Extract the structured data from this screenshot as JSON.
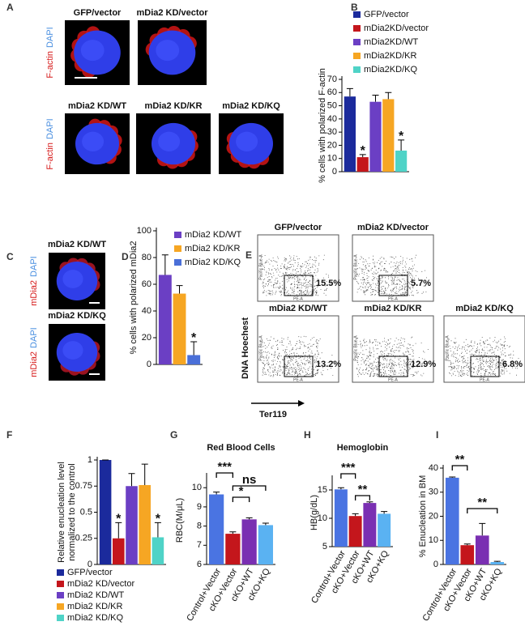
{
  "panel_labels": [
    "A",
    "B",
    "C",
    "D",
    "E",
    "F",
    "G",
    "H",
    "I"
  ],
  "figure_a": {
    "stain": [
      "F-actin",
      "DAPI"
    ],
    "cells": [
      "GFP/vector",
      "mDia2 KD/vector",
      "mDia2 KD/WT",
      "mDia2 KD/KR",
      "mDia2 KD/KQ"
    ]
  },
  "figure_c": {
    "stain": [
      "mDia2",
      "DAPI"
    ],
    "cells": [
      "mDia2 KD/WT",
      "mDia2 KD/KQ"
    ]
  },
  "figure_e": {
    "y_label": "DNA Hoechest",
    "x_label": "Ter119",
    "plot_x_axis": "PE-A",
    "plot_y_axis": "Pacific Blue-A",
    "plots": [
      {
        "label": "GFP/vector",
        "gate": "15.5%"
      },
      {
        "label": "mDia2 KD/vector",
        "gate": "5.7%"
      },
      {
        "label": "mDia2 KD/WT",
        "gate": "13.2%"
      },
      {
        "label": "mDia2 KD/KR",
        "gate": "12.9%"
      },
      {
        "label": "mDia2 KD/KQ",
        "gate": "6.8%"
      }
    ]
  },
  "chart_data": [
    {
      "type": "bar",
      "y_label": "% cells with polarized F-actin",
      "ylim": [
        0,
        70
      ],
      "yticks": [
        0,
        10,
        20,
        30,
        40,
        50,
        60,
        70
      ],
      "series": [
        {
          "name": "GFP/vector",
          "color": "#1b2a9c",
          "values": [
            57
          ],
          "errors": [
            6
          ]
        },
        {
          "name": "mDia2KD/vector",
          "color": "#c4161c",
          "values": [
            11
          ],
          "errors": [
            2
          ],
          "annotation": "*"
        },
        {
          "name": "mDia2KD/WT",
          "color": "#6b3fc4",
          "values": [
            53
          ],
          "errors": [
            5
          ]
        },
        {
          "name": "mDia2KD/KR",
          "color": "#f6a623",
          "values": [
            55
          ],
          "errors": [
            5
          ]
        },
        {
          "name": "mDia2KD/KQ",
          "color": "#4fd3c7",
          "values": [
            16
          ],
          "errors": [
            8
          ],
          "annotation": "*"
        }
      ]
    },
    {
      "type": "bar",
      "y_label": "% cells with polarized mDia2",
      "ylim": [
        0,
        100
      ],
      "yticks": [
        0,
        20,
        40,
        60,
        80,
        100
      ],
      "series": [
        {
          "name": "mDia2 KD/WT",
          "color": "#6b3fc4",
          "values": [
            67
          ],
          "errors": [
            15
          ]
        },
        {
          "name": "mDia2 KD/KR",
          "color": "#f6a623",
          "values": [
            53
          ],
          "errors": [
            6
          ]
        },
        {
          "name": "mDia2 KD/KQ",
          "color": "#4a6fd8",
          "values": [
            7
          ],
          "errors": [
            10
          ],
          "annotation": "*"
        }
      ]
    },
    {
      "type": "bar",
      "y_label": [
        "Relative enucleation level",
        "normalized to the control"
      ],
      "ylim": [
        0,
        1
      ],
      "yticks": [
        0,
        0.25,
        0.5,
        0.75,
        1
      ],
      "series": [
        {
          "name": "GFP/vector",
          "color": "#1b2a9c",
          "values": [
            1
          ],
          "errors": [
            0
          ]
        },
        {
          "name": "mDia2 KD/vector",
          "color": "#c4161c",
          "values": [
            0.25
          ],
          "errors": [
            0.15
          ],
          "annotation": "*"
        },
        {
          "name": "mDia2 KD/WT",
          "color": "#6b3fc4",
          "values": [
            0.75
          ],
          "errors": [
            0.12
          ]
        },
        {
          "name": "mDia2 KD/KR",
          "color": "#f6a623",
          "values": [
            0.76
          ],
          "errors": [
            0.2
          ]
        },
        {
          "name": "mDia2 KD/KQ",
          "color": "#4fd3c7",
          "values": [
            0.26
          ],
          "errors": [
            0.14
          ],
          "annotation": "*"
        }
      ]
    },
    {
      "type": "bar",
      "title": "Red Blood Cells",
      "y_label": "RBC(M/μL)",
      "ylim": [
        6,
        10.6
      ],
      "yticks": [
        6,
        7,
        8,
        9,
        10
      ],
      "categories": [
        "Control+Vector",
        "cKO+Vector",
        "cKO+WT",
        "cKO+KQ"
      ],
      "values": [
        9.65,
        7.6,
        8.35,
        8.05
      ],
      "errors": [
        0.12,
        0.1,
        0.08,
        0.1
      ],
      "colors": [
        "#4a74e2",
        "#c4161c",
        "#7a2fb2",
        "#5ab2f2"
      ],
      "annotations": [
        "***",
        "*",
        "ns"
      ]
    },
    {
      "type": "bar",
      "title": "Hemoglobin",
      "y_label": "HB(g/dL)",
      "ylim": [
        5,
        17
      ],
      "yticks": [
        5,
        10,
        15
      ],
      "categories": [
        "Control+Vector",
        "cKO+Vector",
        "cKO+WT",
        "cKO+KQ"
      ],
      "values": [
        15.1,
        10.4,
        12.7,
        10.8
      ],
      "errors": [
        0.3,
        0.4,
        0.2,
        0.4
      ],
      "colors": [
        "#4a74e2",
        "#c4161c",
        "#7a2fb2",
        "#5ab2f2"
      ],
      "annotations": [
        "***",
        "**"
      ]
    },
    {
      "type": "bar",
      "y_label": "% Enucleation in BM",
      "ylim": [
        0,
        40
      ],
      "yticks": [
        0,
        10,
        20,
        30,
        40
      ],
      "categories": [
        "Control+Vector",
        "cKO+Vector",
        "cKO+WT",
        "cKO+KQ"
      ],
      "values": [
        36,
        8,
        12,
        1
      ],
      "errors": [
        0.3,
        0.5,
        5,
        0.3
      ],
      "colors": [
        "#4a74e2",
        "#c4161c",
        "#7a2fb2",
        "#5ab2f2"
      ],
      "annotations": [
        "**",
        "**"
      ]
    }
  ]
}
